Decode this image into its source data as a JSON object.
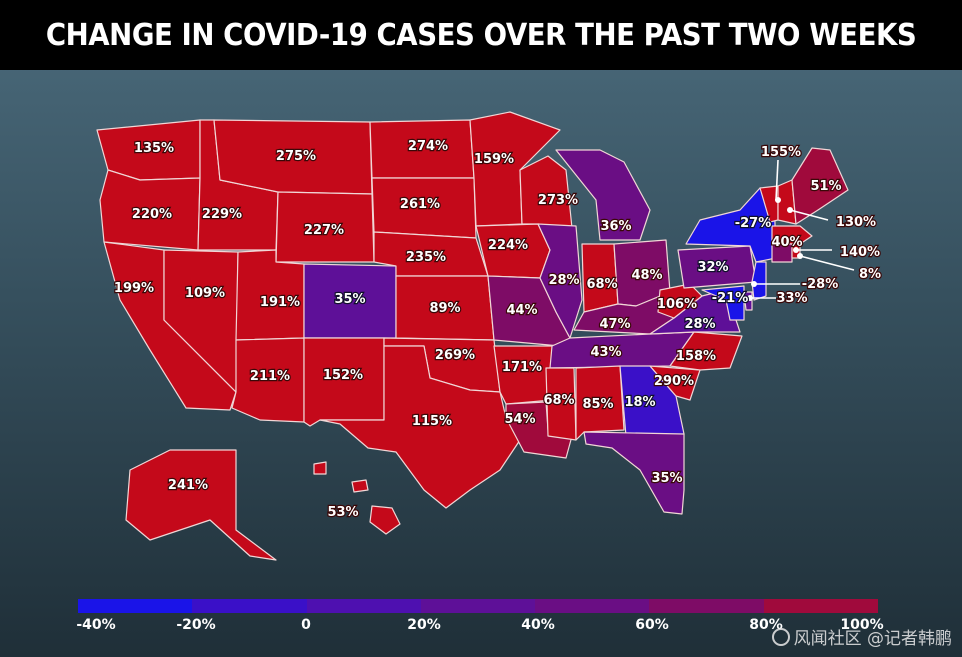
{
  "title": "CHANGE IN COVID-19 CASES OVER THE PAST TWO WEEKS",
  "colors": {
    "neg40": "#1a14e8",
    "neg20": "#3a10c8",
    "zero": "#4e10b0",
    "p20": "#5e1098",
    "p40": "#6a0e84",
    "p60": "#7e0c66",
    "p80": "#a00a3c",
    "high": "#c4091a"
  },
  "states": {
    "WA": "135%",
    "OR": "220%",
    "CA": "199%",
    "NV": "109%",
    "ID": "229%",
    "MT": "275%",
    "WY": "227%",
    "UT": "191%",
    "AZ": "211%",
    "CO": "35%",
    "NM": "152%",
    "ND": "274%",
    "SD": "261%",
    "NE": "235%",
    "KS": "89%",
    "OK": "269%",
    "TX": "115%",
    "MN": "159%",
    "IA": "224%",
    "MO": "44%",
    "AR": "171%",
    "LA": "54%",
    "WI": "273%",
    "IL": "28%",
    "MI": "36%",
    "IN": "68%",
    "OH": "48%",
    "KY": "47%",
    "TN": "43%",
    "MS": "68%",
    "AL": "85%",
    "GA": "18%",
    "FL": "35%",
    "SC": "290%",
    "NC": "158%",
    "VA": "28%",
    "WV": "106%",
    "PA": "32%",
    "NY": "-27%",
    "VT": "155%",
    "NH": "130%",
    "ME": "51%",
    "MA": "140%",
    "CT": "40%",
    "RI": "8%",
    "NJ": "-28%",
    "DE": "33%",
    "MD": "-21%",
    "AK": "241%",
    "HI": "53%"
  },
  "legend": {
    "ticks": [
      "-40%",
      "-20%",
      "0",
      "20%",
      "40%",
      "60%",
      "80%",
      "100%"
    ]
  },
  "watermark": "风闻社区 @记者韩鹏"
}
